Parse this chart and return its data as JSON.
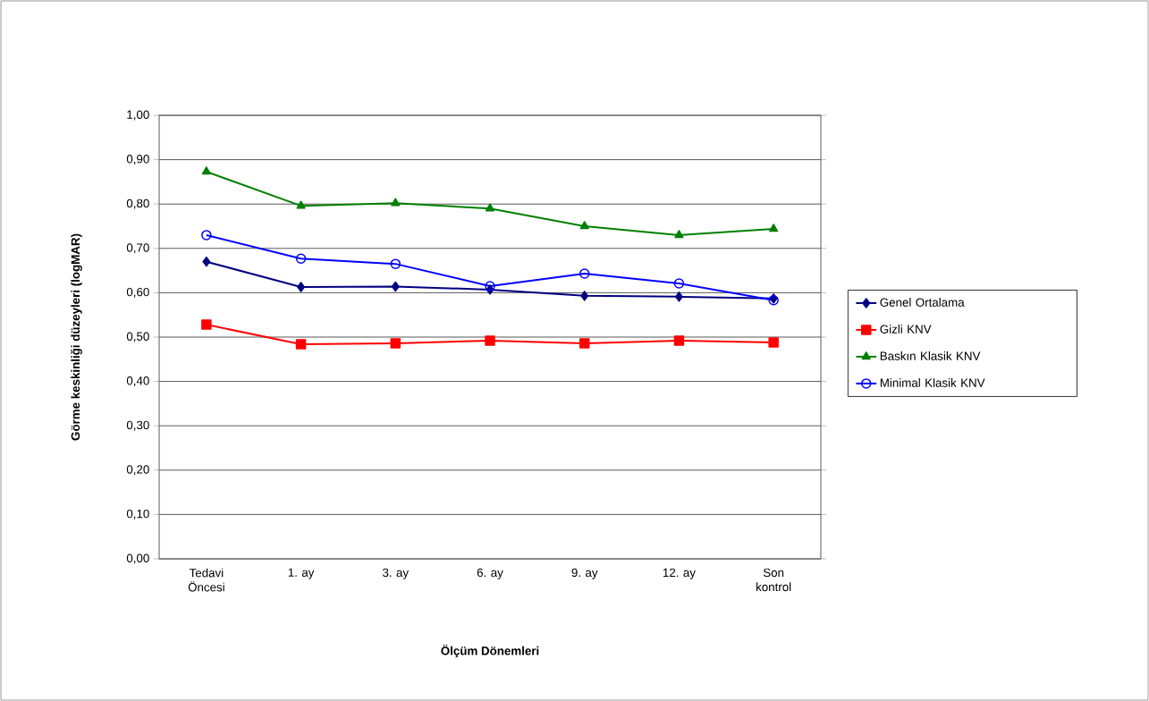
{
  "chart_data": {
    "type": "line",
    "xlabel": "Ölçüm Dönemleri",
    "ylabel": "Görme keskinliği düzeyleri (logMAR)",
    "categories": [
      "Tedavi Öncesi",
      "1. ay",
      "3. ay",
      "6. ay",
      "9. ay",
      "12. ay",
      "Son kontrol"
    ],
    "series": [
      {
        "name": "Genel Ortalama",
        "color": "#000080",
        "marker": "diamond",
        "values": [
          0.67,
          0.613,
          0.614,
          0.607,
          0.593,
          0.591,
          0.587
        ]
      },
      {
        "name": "Gizli KNV",
        "color": "#ff0000",
        "marker": "square",
        "values": [
          0.528,
          0.484,
          0.486,
          0.492,
          0.486,
          0.492,
          0.488
        ]
      },
      {
        "name": "Baskın Klasik KNV",
        "color": "#008000",
        "marker": "triangle",
        "values": [
          0.873,
          0.796,
          0.802,
          0.79,
          0.75,
          0.73,
          0.744
        ]
      },
      {
        "name": "Minimal Klasik KNV",
        "color": "#0000ff",
        "marker": "circle",
        "values": [
          0.73,
          0.677,
          0.665,
          0.615,
          0.643,
          0.621,
          0.583
        ]
      }
    ],
    "ylim": [
      0,
      1
    ],
    "yticks": [
      {
        "value": 0,
        "label": "0,00"
      },
      {
        "value": 0.1,
        "label": "0,10"
      },
      {
        "value": 0.2,
        "label": "0,20"
      },
      {
        "value": 0.3,
        "label": "0,30"
      },
      {
        "value": 0.4,
        "label": "0,40"
      },
      {
        "value": 0.5,
        "label": "0,50"
      },
      {
        "value": 0.6,
        "label": "0,60"
      },
      {
        "value": 0.7,
        "label": "0,70"
      },
      {
        "value": 0.8,
        "label": "0,80"
      },
      {
        "value": 0.9,
        "label": "0,90"
      },
      {
        "value": 1,
        "label": "1,00"
      }
    ],
    "grid": "y",
    "legend": "right",
    "line_style": "solid"
  }
}
